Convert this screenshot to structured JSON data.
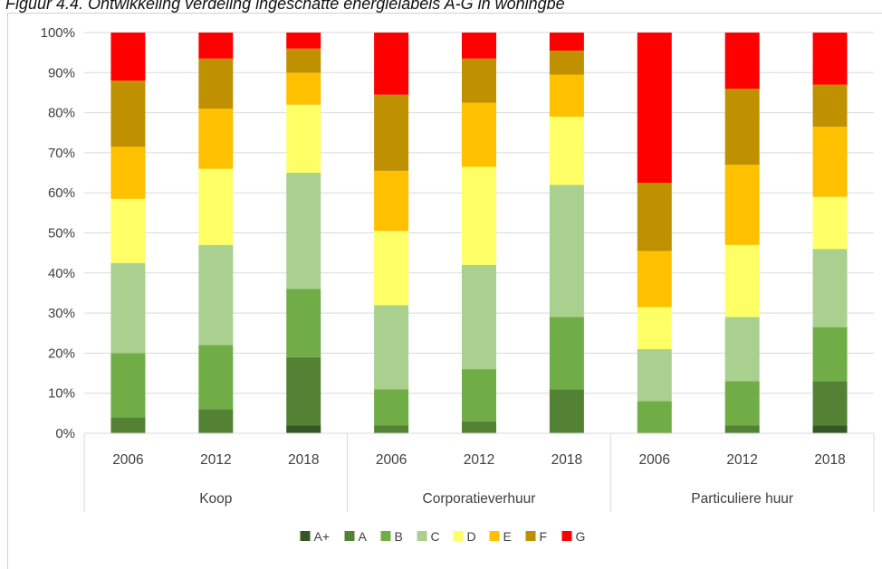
{
  "caption": "Figuur 4.4. Ontwikkeling verdeling ingeschatte energielabels A-G in woningbe",
  "chart_data": {
    "type": "bar",
    "stacked": true,
    "normalized": true,
    "y_ticks": [
      "0%",
      "10%",
      "20%",
      "30%",
      "40%",
      "50%",
      "60%",
      "70%",
      "80%",
      "90%",
      "100%"
    ],
    "ylim": [
      0,
      100
    ],
    "grid": true,
    "legend_position": "bottom",
    "groups": [
      "Koop",
      "Corporatieverhuur",
      "Particuliere huur"
    ],
    "categories": [
      "2006",
      "2012",
      "2018",
      "2006",
      "2012",
      "2018",
      "2006",
      "2012",
      "2018"
    ],
    "series": [
      {
        "name": "A+",
        "color": "#375623",
        "values": [
          0,
          0,
          2,
          0,
          0,
          0,
          0,
          0,
          2
        ]
      },
      {
        "name": "A",
        "color": "#548235",
        "values": [
          4,
          6,
          17,
          2,
          3,
          11,
          0,
          2,
          11
        ]
      },
      {
        "name": "B",
        "color": "#70AD47",
        "values": [
          16,
          16,
          17,
          9,
          13,
          18,
          8,
          11,
          13.5
        ]
      },
      {
        "name": "C",
        "color": "#A9D08E",
        "values": [
          22.5,
          25,
          29,
          21,
          26,
          33,
          13,
          16,
          19.5
        ]
      },
      {
        "name": "D",
        "color": "#FFFF66",
        "values": [
          16,
          19,
          17,
          18.5,
          24.5,
          17,
          10.5,
          18,
          13
        ]
      },
      {
        "name": "E",
        "color": "#FFC000",
        "values": [
          13,
          15,
          8,
          15,
          16,
          10.5,
          14,
          20,
          17.5
        ]
      },
      {
        "name": "F",
        "color": "#BF9000",
        "values": [
          16.5,
          12.5,
          6,
          19,
          11,
          6,
          17,
          19,
          10.5
        ]
      },
      {
        "name": "G",
        "color": "#FF0000",
        "values": [
          12,
          6.5,
          4,
          15.5,
          6.5,
          4.5,
          37.5,
          14,
          13
        ]
      }
    ]
  }
}
